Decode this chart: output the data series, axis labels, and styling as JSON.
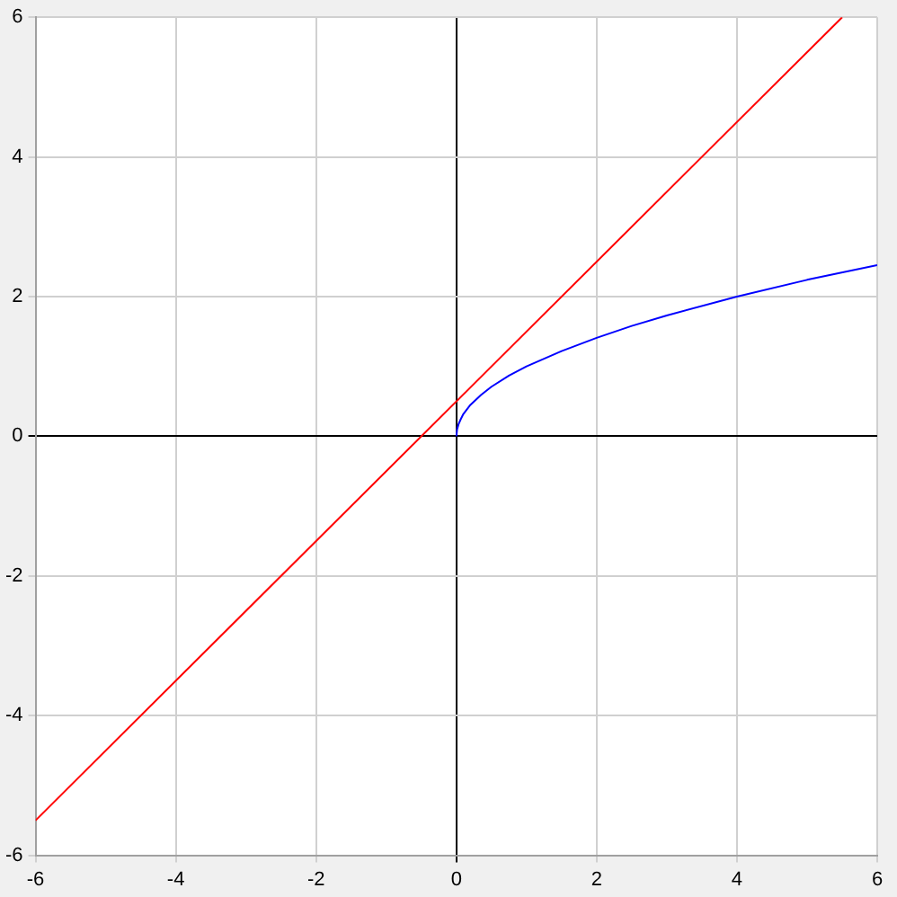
{
  "chart_data": {
    "type": "line",
    "xlim": [
      -6,
      6
    ],
    "ylim": [
      -6,
      6
    ],
    "xticks": [
      -6,
      -4,
      -2,
      0,
      2,
      4,
      6
    ],
    "yticks": [
      -6,
      -4,
      -2,
      0,
      2,
      4,
      6
    ],
    "grid": true,
    "legend": false,
    "marker": "none",
    "line_style": "solid",
    "series": [
      {
        "color": "#ff0000",
        "x": [
          -6,
          5.5
        ],
        "values": [
          -5.5,
          6
        ]
      },
      {
        "color": "#0000ff",
        "x": [
          0,
          0.01,
          0.03,
          0.06,
          0.1,
          0.2,
          0.35,
          0.5,
          0.75,
          1,
          1.5,
          2,
          2.5,
          3,
          4,
          5,
          6
        ],
        "values": [
          0,
          0.1,
          0.17,
          0.24,
          0.32,
          0.45,
          0.59,
          0.71,
          0.87,
          1,
          1.22,
          1.41,
          1.58,
          1.73,
          2,
          2.24,
          2.45
        ]
      }
    ]
  }
}
